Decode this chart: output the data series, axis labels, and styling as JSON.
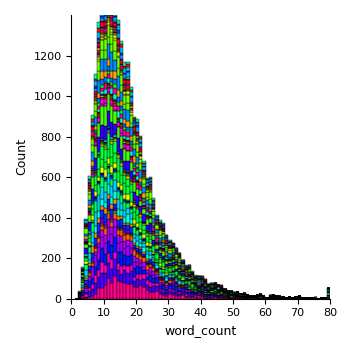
{
  "xlabel": "word_count",
  "ylabel": "Count",
  "xlim": [
    0,
    80
  ],
  "ylim": [
    0,
    1400
  ],
  "yticks": [
    0,
    200,
    400,
    600,
    800,
    1000,
    1200
  ],
  "xticks": [
    0,
    10,
    20,
    30,
    40,
    50,
    60,
    70,
    80
  ],
  "num_books": 66,
  "bin_width": 1,
  "bins_start": 1,
  "bins_end": 80,
  "background_color": "#ffffff",
  "seed": 12345,
  "figsize": [
    3.52,
    3.52
  ],
  "dpi": 100
}
